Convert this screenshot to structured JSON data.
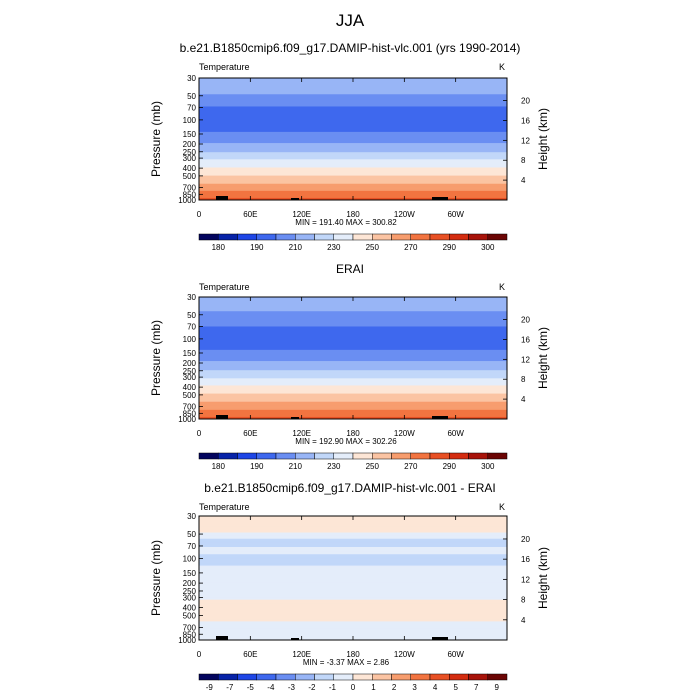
{
  "figure": {
    "title": "JJA"
  },
  "chart_data": [
    {
      "type": "heatmap",
      "title": "b.e21.B1850cmip6.f09_g17.DAMIP-hist-vlc.001 (yrs 1990-2014)",
      "left_label": "Temperature",
      "units": "K",
      "ylabel": "Pressure (mb)",
      "ylabel_right": "Height (km)",
      "y_ticks": [
        "30",
        "50",
        "70",
        "100",
        "150",
        "200",
        "250",
        "300",
        "400",
        "500",
        "700",
        "850",
        "1000"
      ],
      "y_ticks_right": [
        "20",
        "16",
        "12",
        "8",
        "4"
      ],
      "x_ticks": [
        "0",
        "60E",
        "120E",
        "180",
        "120W",
        "60W"
      ],
      "stats": "MIN = 191.40  MAX = 300.82",
      "colorbar_labels": [
        "180",
        "190",
        "210",
        "230",
        "250",
        "270",
        "290",
        "300"
      ],
      "colorbar_colors": [
        "#03055e",
        "#0723a8",
        "#1e46e6",
        "#3e68ee",
        "#6a8ef2",
        "#98b5f6",
        "#c1d7f9",
        "#e4edfa",
        "#fde6d6",
        "#fbc4a3",
        "#f79d6e",
        "#f27440",
        "#e85024",
        "#d42c10",
        "#a8130a",
        "#6b0504"
      ],
      "profile": [
        {
          "p": 30,
          "v": 228
        },
        {
          "p": 40,
          "v": 223
        },
        {
          "p": 50,
          "v": 219
        },
        {
          "p": 60,
          "v": 214
        },
        {
          "p": 70,
          "v": 209
        },
        {
          "p": 100,
          "v": 204
        },
        {
          "p": 125,
          "v": 206
        },
        {
          "p": 150,
          "v": 212
        },
        {
          "p": 200,
          "v": 221
        },
        {
          "p": 250,
          "v": 230
        },
        {
          "p": 300,
          "v": 238
        },
        {
          "p": 400,
          "v": 251
        },
        {
          "p": 500,
          "v": 261
        },
        {
          "p": 600,
          "v": 268
        },
        {
          "p": 700,
          "v": 275
        },
        {
          "p": 850,
          "v": 284
        },
        {
          "p": 1000,
          "v": 293
        }
      ]
    },
    {
      "type": "heatmap",
      "title": "ERAI",
      "left_label": "Temperature",
      "units": "K",
      "ylabel": "Pressure (mb)",
      "ylabel_right": "Height (km)",
      "y_ticks": [
        "30",
        "50",
        "70",
        "100",
        "150",
        "200",
        "250",
        "300",
        "400",
        "500",
        "700",
        "850",
        "1000"
      ],
      "y_ticks_right": [
        "20",
        "16",
        "12",
        "8",
        "4"
      ],
      "x_ticks": [
        "0",
        "60E",
        "120E",
        "180",
        "120W",
        "60W"
      ],
      "stats": "MIN = 192.90  MAX = 302.26",
      "colorbar_labels": [
        "180",
        "190",
        "210",
        "230",
        "250",
        "270",
        "290",
        "300"
      ],
      "colorbar_colors": [
        "#03055e",
        "#0723a8",
        "#1e46e6",
        "#3e68ee",
        "#6a8ef2",
        "#98b5f6",
        "#c1d7f9",
        "#e4edfa",
        "#fde6d6",
        "#fbc4a3",
        "#f79d6e",
        "#f27440",
        "#e85024",
        "#d42c10",
        "#a8130a",
        "#6b0504"
      ],
      "profile": [
        {
          "p": 30,
          "v": 227
        },
        {
          "p": 40,
          "v": 222
        },
        {
          "p": 50,
          "v": 218
        },
        {
          "p": 60,
          "v": 214
        },
        {
          "p": 70,
          "v": 210
        },
        {
          "p": 100,
          "v": 205
        },
        {
          "p": 125,
          "v": 207
        },
        {
          "p": 150,
          "v": 213
        },
        {
          "p": 200,
          "v": 222
        },
        {
          "p": 250,
          "v": 231
        },
        {
          "p": 300,
          "v": 239
        },
        {
          "p": 400,
          "v": 252
        },
        {
          "p": 500,
          "v": 262
        },
        {
          "p": 600,
          "v": 269
        },
        {
          "p": 700,
          "v": 276
        },
        {
          "p": 850,
          "v": 285
        },
        {
          "p": 1000,
          "v": 294
        }
      ]
    },
    {
      "type": "heatmap",
      "title": "b.e21.B1850cmip6.f09_g17.DAMIP-hist-vlc.001 - ERAI",
      "left_label": "Temperature",
      "units": "K",
      "ylabel": "Pressure (mb)",
      "ylabel_right": "Height (km)",
      "y_ticks": [
        "30",
        "50",
        "70",
        "100",
        "150",
        "200",
        "250",
        "300",
        "400",
        "500",
        "700",
        "850",
        "1000"
      ],
      "y_ticks_right": [
        "20",
        "16",
        "12",
        "8",
        "4"
      ],
      "x_ticks": [
        "0",
        "60E",
        "120E",
        "180",
        "120W",
        "60W"
      ],
      "stats": "MIN =  -3.37  MAX =   2.86",
      "colorbar_labels": [
        "-9",
        "-7",
        "-5",
        "-4",
        "-3",
        "-2",
        "-1",
        "0",
        "1",
        "2",
        "3",
        "4",
        "5",
        "7",
        "9"
      ],
      "colorbar_colors": [
        "#03055e",
        "#0723a8",
        "#1e46e6",
        "#3e68ee",
        "#6a8ef2",
        "#98b5f6",
        "#c1d7f9",
        "#e4edfa",
        "#fde6d6",
        "#fbc4a3",
        "#f79d6e",
        "#f27440",
        "#e85024",
        "#d42c10",
        "#a8130a",
        "#6b0504"
      ],
      "profile": [
        {
          "p": 30,
          "v": 0.5
        },
        {
          "p": 45,
          "v": 0.5
        },
        {
          "p": 50,
          "v": -0.5
        },
        {
          "p": 65,
          "v": -1.5
        },
        {
          "p": 80,
          "v": -0.5
        },
        {
          "p": 100,
          "v": -1.5
        },
        {
          "p": 150,
          "v": -0.5
        },
        {
          "p": 300,
          "v": -0.5
        },
        {
          "p": 350,
          "v": 0.5
        },
        {
          "p": 550,
          "v": 0.5
        },
        {
          "p": 650,
          "v": -0.5
        },
        {
          "p": 1000,
          "v": -0.5
        }
      ]
    }
  ]
}
